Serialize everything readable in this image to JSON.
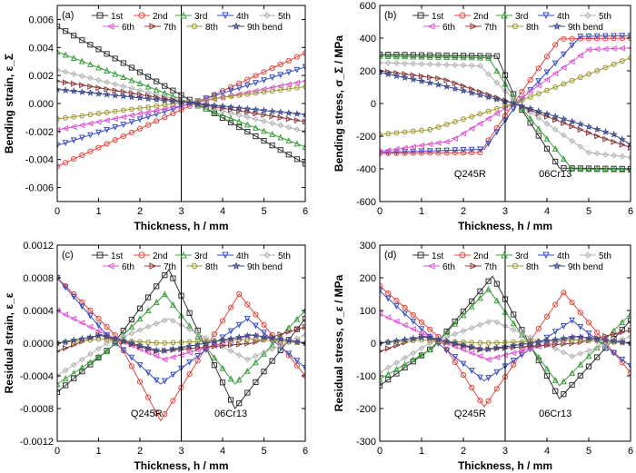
{
  "chart_data": [
    {
      "type": "line",
      "panel_label": "(a)",
      "ylabel": "Bending strain, ε_Σ",
      "xlabel": "Thickness, h / mm",
      "xlim": [
        0,
        6
      ],
      "ylim": [
        -0.007,
        0.007
      ],
      "xticks": [
        0,
        1,
        2,
        3,
        4,
        5,
        6
      ],
      "yticks": [
        "-0.006",
        "-0.004",
        "-0.002",
        "0.000",
        "0.002",
        "0.004",
        "0.006"
      ],
      "ytick_values": [
        -0.006,
        -0.004,
        -0.002,
        0,
        0.002,
        0.004,
        0.006
      ],
      "divider_x": 3,
      "region_labels": [],
      "legend_placement": "top",
      "series": [
        {
          "name": "1st",
          "color": "#333333",
          "marker": "square",
          "x": [
            0,
            6
          ],
          "y": [
            0.0055,
            -0.0043
          ]
        },
        {
          "name": "2nd",
          "color": "#e8453c",
          "marker": "circle",
          "x": [
            0,
            6
          ],
          "y": [
            -0.0045,
            0.0036
          ]
        },
        {
          "name": "3rd",
          "color": "#3c9e3c",
          "marker": "triangle",
          "x": [
            0,
            6
          ],
          "y": [
            0.0037,
            -0.0031
          ]
        },
        {
          "name": "4th",
          "color": "#3a4fc4",
          "marker": "tri-down",
          "x": [
            0,
            6
          ],
          "y": [
            -0.003,
            0.0026
          ]
        },
        {
          "name": "5th",
          "color": "#b0b0b0",
          "marker": "diamond",
          "x": [
            0,
            6
          ],
          "y": [
            0.0024,
            -0.002
          ]
        },
        {
          "name": "6th",
          "color": "#e05ad4",
          "marker": "tri-left",
          "x": [
            0,
            6
          ],
          "y": [
            -0.0019,
            0.0016
          ]
        },
        {
          "name": "7th",
          "color": "#8a3a3a",
          "marker": "tri-right",
          "x": [
            0,
            6
          ],
          "y": [
            0.0016,
            -0.0013
          ]
        },
        {
          "name": "8th",
          "color": "#a09a35",
          "marker": "hexagon",
          "x": [
            0,
            6
          ],
          "y": [
            -0.0011,
            0.0012
          ]
        },
        {
          "name": "9th bend",
          "color": "#3b4a8a",
          "marker": "star",
          "x": [
            0,
            6
          ],
          "y": [
            0.001,
            -0.0008
          ]
        }
      ]
    },
    {
      "type": "line",
      "panel_label": "(b)",
      "ylabel": "Bending stress, σ_Σ / MPa",
      "xlabel": "Thickness, h / mm",
      "xlim": [
        0,
        6
      ],
      "ylim": [
        -600,
        600
      ],
      "xticks": [
        0,
        1,
        2,
        3,
        4,
        5,
        6
      ],
      "yticks": [
        "-600",
        "-400",
        "-200",
        "0",
        "200",
        "400",
        "600"
      ],
      "ytick_values": [
        -600,
        -400,
        -200,
        0,
        200,
        400,
        600
      ],
      "divider_x": 3,
      "region_labels": [
        "Q245R",
        "06Cr13"
      ],
      "legend_placement": "top",
      "series": [
        {
          "name": "1st",
          "color": "#333333",
          "marker": "square",
          "x": [
            0,
            2.8,
            3.3,
            4.3,
            6
          ],
          "y": [
            300,
            290,
            0,
            -395,
            -400
          ]
        },
        {
          "name": "2nd",
          "color": "#e8453c",
          "marker": "circle",
          "x": [
            0,
            2.4,
            3.2,
            4.3,
            6
          ],
          "y": [
            -305,
            -300,
            0,
            395,
            400
          ]
        },
        {
          "name": "3rd",
          "color": "#3c9e3c",
          "marker": "triangle",
          "x": [
            0,
            2.6,
            3.3,
            4.6,
            6
          ],
          "y": [
            290,
            280,
            0,
            -400,
            -405
          ]
        },
        {
          "name": "4th",
          "color": "#3a4fc4",
          "marker": "tri-down",
          "x": [
            0,
            2.5,
            3.3,
            4.8,
            6
          ],
          "y": [
            -300,
            -280,
            0,
            410,
            415
          ]
        },
        {
          "name": "5th",
          "color": "#b0b0b0",
          "marker": "diamond",
          "x": [
            0,
            2.4,
            3.3,
            5,
            6
          ],
          "y": [
            250,
            230,
            0,
            -300,
            -330
          ]
        },
        {
          "name": "6th",
          "color": "#e05ad4",
          "marker": "tri-left",
          "x": [
            0,
            1.7,
            3.2,
            5,
            6
          ],
          "y": [
            -295,
            -230,
            0,
            330,
            340
          ]
        },
        {
          "name": "7th",
          "color": "#8a3a3a",
          "marker": "tri-right",
          "x": [
            0,
            1.5,
            3.2,
            5.2,
            6
          ],
          "y": [
            200,
            150,
            0,
            -200,
            -270
          ]
        },
        {
          "name": "8th",
          "color": "#a09a35",
          "marker": "hexagon",
          "x": [
            0,
            1.2,
            3.2,
            5.4,
            6
          ],
          "y": [
            -190,
            -160,
            0,
            220,
            280
          ]
        },
        {
          "name": "9th bend",
          "color": "#3b4a8a",
          "marker": "star",
          "x": [
            0,
            1.5,
            3.2,
            5.6,
            6
          ],
          "y": [
            190,
            110,
            0,
            -190,
            -250
          ]
        }
      ]
    },
    {
      "type": "line",
      "panel_label": "(c)",
      "ylabel": "Residual strain, ε_ε",
      "xlabel": "Thickness, h / mm",
      "xlim": [
        0,
        6
      ],
      "ylim": [
        -0.0012,
        0.0012
      ],
      "xticks": [
        0,
        1,
        2,
        3,
        4,
        5,
        6
      ],
      "yticks": [
        "-0.0012",
        "-0.0008",
        "-0.0004",
        "0.0000",
        "0.0004",
        "0.0008",
        "0.0012"
      ],
      "ytick_values": [
        -0.0012,
        -0.0008,
        -0.0004,
        0,
        0.0004,
        0.0008,
        0.0012
      ],
      "divider_x": 3,
      "region_labels": [
        "Q245R",
        "06Cr13"
      ],
      "legend_placement": "top",
      "series": [
        {
          "name": "1st",
          "color": "#333333",
          "marker": "square",
          "x": [
            0,
            1.3,
            2.7,
            4.3,
            6
          ],
          "y": [
            -0.0006,
            -5e-05,
            0.0009,
            -0.0008,
            0.0003
          ]
        },
        {
          "name": "2nd",
          "color": "#e8453c",
          "marker": "circle",
          "x": [
            0,
            1.4,
            2.5,
            4.4,
            6
          ],
          "y": [
            0.0008,
            0.0001,
            -0.00095,
            0.0006,
            -0.0004
          ]
        },
        {
          "name": "3rd",
          "color": "#3c9e3c",
          "marker": "triangle",
          "x": [
            0,
            1.2,
            2.6,
            4.3,
            6
          ],
          "y": [
            -0.0005,
            -0.0001,
            0.0006,
            -0.0005,
            0.0004
          ]
        },
        {
          "name": "4th",
          "color": "#3a4fc4",
          "marker": "tri-down",
          "x": [
            0,
            1.2,
            2.5,
            4.6,
            6
          ],
          "y": [
            0.0008,
            0.0001,
            -0.0005,
            0.0003,
            -0.0003
          ]
        },
        {
          "name": "5th",
          "color": "#b0b0b0",
          "marker": "diamond",
          "x": [
            0,
            1.2,
            2.7,
            4.6,
            6
          ],
          "y": [
            -0.0004,
            0,
            0.0003,
            -0.0002,
            0.0001
          ]
        },
        {
          "name": "6th",
          "color": "#e05ad4",
          "marker": "tri-left",
          "x": [
            0,
            1.2,
            2.6,
            4.7,
            6
          ],
          "y": [
            0.0004,
            0.0001,
            -0.0002,
            0.0001,
            0
          ]
        },
        {
          "name": "7th",
          "color": "#8a3a3a",
          "marker": "tri-right",
          "x": [
            0,
            1,
            2.4,
            4.7,
            6
          ],
          "y": [
            -0.0001,
            0.0001,
            -0.0001,
            0,
            0.0002
          ]
        },
        {
          "name": "8th",
          "color": "#a09a35",
          "marker": "hexagon",
          "x": [
            0,
            1,
            2.5,
            4.7,
            6
          ],
          "y": [
            0,
            5e-05,
            0,
            5e-05,
            0
          ]
        },
        {
          "name": "9th bend",
          "color": "#3b4a8a",
          "marker": "star",
          "x": [
            0,
            1.1,
            2.5,
            4.7,
            6
          ],
          "y": [
            0,
            0.0001,
            -0.0001,
            0.0001,
            0
          ]
        }
      ]
    },
    {
      "type": "line",
      "panel_label": "(d)",
      "ylabel": "Residual stress, σ_ε / MPa",
      "xlabel": "Thickness, h / mm",
      "xlim": [
        0,
        6
      ],
      "ylim": [
        -300,
        300
      ],
      "xticks": [
        0,
        1,
        2,
        3,
        4,
        5,
        6
      ],
      "yticks": [
        "-300",
        "-200",
        "-100",
        "0",
        "100",
        "200",
        "300"
      ],
      "ytick_values": [
        -300,
        -200,
        -100,
        0,
        100,
        200,
        300
      ],
      "divider_x": 3,
      "region_labels": [
        "Q245R",
        "06Cr13"
      ],
      "legend_placement": "top",
      "series": [
        {
          "name": "1st",
          "color": "#333333",
          "marker": "square",
          "x": [
            0,
            1.3,
            2.7,
            4.3,
            6
          ],
          "y": [
            -130,
            -10,
            205,
            -170,
            70
          ]
        },
        {
          "name": "2nd",
          "color": "#e8453c",
          "marker": "circle",
          "x": [
            0,
            1.4,
            2.5,
            4.4,
            6
          ],
          "y": [
            175,
            20,
            -195,
            155,
            -90
          ]
        },
        {
          "name": "3rd",
          "color": "#3c9e3c",
          "marker": "triangle",
          "x": [
            0,
            1.2,
            2.6,
            4.3,
            6
          ],
          "y": [
            -110,
            -20,
            165,
            -130,
            90
          ]
        },
        {
          "name": "4th",
          "color": "#3a4fc4",
          "marker": "tri-down",
          "x": [
            0,
            1.2,
            2.5,
            4.6,
            6
          ],
          "y": [
            160,
            20,
            -115,
            70,
            -70
          ]
        },
        {
          "name": "5th",
          "color": "#b0b0b0",
          "marker": "diamond",
          "x": [
            0,
            1.2,
            2.7,
            4.6,
            6
          ],
          "y": [
            -90,
            0,
            70,
            -40,
            20
          ]
        },
        {
          "name": "6th",
          "color": "#e05ad4",
          "marker": "tri-left",
          "x": [
            0,
            1.2,
            2.6,
            4.7,
            6
          ],
          "y": [
            90,
            20,
            -50,
            20,
            0
          ]
        },
        {
          "name": "7th",
          "color": "#8a3a3a",
          "marker": "tri-right",
          "x": [
            0,
            1,
            2.4,
            4.7,
            6
          ],
          "y": [
            -25,
            20,
            -20,
            0,
            40
          ]
        },
        {
          "name": "8th",
          "color": "#a09a35",
          "marker": "hexagon",
          "x": [
            0,
            1,
            2.5,
            4.7,
            6
          ],
          "y": [
            0,
            10,
            0,
            10,
            0
          ]
        },
        {
          "name": "9th bend",
          "color": "#3b4a8a",
          "marker": "star",
          "x": [
            0,
            1.1,
            2.5,
            4.7,
            6
          ],
          "y": [
            0,
            20,
            -20,
            20,
            0
          ]
        }
      ]
    }
  ]
}
